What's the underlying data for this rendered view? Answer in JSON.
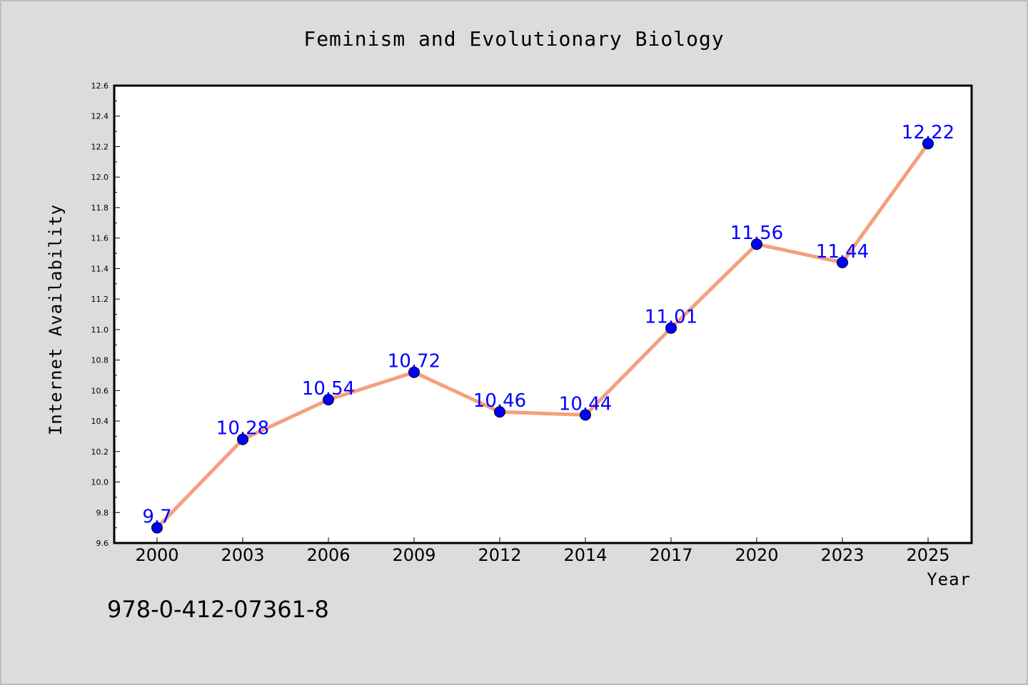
{
  "chart_data": {
    "type": "line",
    "title": "Feminism and Evolutionary Biology",
    "xlabel": "Year",
    "ylabel": "Internet Availability",
    "categories": [
      "2000",
      "2003",
      "2006",
      "2009",
      "2012",
      "2014",
      "2017",
      "2020",
      "2023",
      "2025"
    ],
    "series": [
      {
        "values": [
          9.7,
          10.28,
          10.54,
          10.72,
          10.46,
          10.44,
          11.01,
          11.56,
          11.44,
          12.22
        ],
        "labels": [
          "9.7",
          "10.28",
          "10.54",
          "10.72",
          "10.46",
          "10.44",
          "11.01",
          "11.56",
          "11.44",
          "12.22"
        ]
      }
    ],
    "ylim": [
      9.6,
      12.6
    ],
    "yticks": [
      "9.6",
      "9.8",
      "10.0",
      "10.2",
      "10.4",
      "10.6",
      "10.8",
      "11.0",
      "11.2",
      "11.4",
      "11.6",
      "11.8",
      "12.0",
      "12.2",
      "12.4",
      "12.6"
    ],
    "grid": false,
    "legend": "none",
    "colors": {
      "line": "#f4a07e",
      "marker": "#0000ff",
      "data_label": "#0000ff",
      "background": "#dcdcdc",
      "plot_background": "#ffffff"
    }
  },
  "footer_text": "978-0-412-07361-8"
}
